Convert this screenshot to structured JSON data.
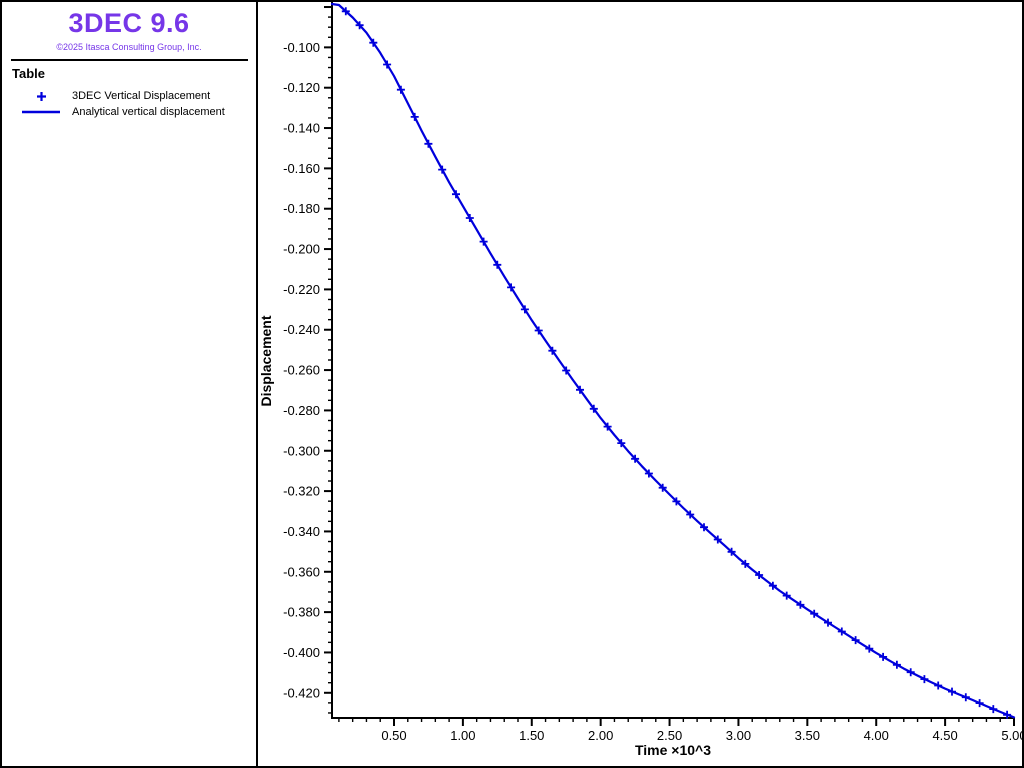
{
  "app": {
    "title": "3DEC 9.6",
    "copyright": "©2025 Itasca Consulting Group, Inc.",
    "brand_color": "#7636e8"
  },
  "legend": {
    "heading": "Table",
    "items": [
      {
        "label": "3DEC Vertical Displacement",
        "marker": "plus",
        "color": "#0000dc"
      },
      {
        "label": "Analytical vertical displacement",
        "marker": "line",
        "color": "#0000dc"
      }
    ]
  },
  "chart_data": {
    "type": "line",
    "title": "",
    "xlabel": "Time ×10^3",
    "ylabel": "Displacement",
    "xlim": [
      0.05,
      5.0
    ],
    "ylim": [
      -0.4325,
      -0.0785
    ],
    "x_major_step": 0.5,
    "x_minor_step": 0.1,
    "y_major_step": 0.02,
    "y_minor_step": 0.005,
    "x_decimals": 2,
    "y_decimals": 3,
    "grid": false,
    "legend_position": "sidebar",
    "axis_color": "#000000",
    "series": [
      {
        "name": "3DEC Vertical Displacement",
        "type": "scatter",
        "marker": "plus",
        "color": "#0000dc",
        "x": [
          0.15,
          0.25,
          0.35,
          0.45,
          0.55,
          0.65,
          0.75,
          0.85,
          0.95,
          1.05,
          1.15,
          1.25,
          1.35,
          1.45,
          1.55,
          1.65,
          1.75,
          1.85,
          1.95,
          2.05,
          2.15,
          2.25,
          2.35,
          2.45,
          2.55,
          2.65,
          2.75,
          2.85,
          2.95,
          3.05,
          3.15,
          3.25,
          3.35,
          3.45,
          3.55,
          3.65,
          3.75,
          3.85,
          3.95,
          4.05,
          4.15,
          4.25,
          4.35,
          4.45,
          4.55,
          4.65,
          4.75,
          4.85,
          4.95
        ],
        "y": [
          -0.0821,
          -0.089,
          -0.0977,
          -0.1085,
          -0.121,
          -0.1345,
          -0.1478,
          -0.1606,
          -0.1728,
          -0.1846,
          -0.1963,
          -0.2078,
          -0.219,
          -0.2299,
          -0.2404,
          -0.2504,
          -0.2602,
          -0.2698,
          -0.2792,
          -0.288,
          -0.2962,
          -0.304,
          -0.3113,
          -0.3183,
          -0.3251,
          -0.3316,
          -0.3379,
          -0.344,
          -0.3501,
          -0.3561,
          -0.3616,
          -0.3669,
          -0.3718,
          -0.3764,
          -0.3808,
          -0.3852,
          -0.3896,
          -0.3939,
          -0.3981,
          -0.4022,
          -0.4061,
          -0.4098,
          -0.4132,
          -0.4164,
          -0.4194,
          -0.4222,
          -0.4251,
          -0.4281,
          -0.4309
        ]
      },
      {
        "name": "Analytical vertical displacement",
        "type": "line",
        "color": "#0000dc",
        "x": [
          0.05,
          0.1,
          0.2,
          0.3,
          0.4,
          0.5,
          0.6,
          0.7,
          0.8,
          0.9,
          1.0,
          1.1,
          1.2,
          1.3,
          1.4,
          1.5,
          1.6,
          1.7,
          1.8,
          1.9,
          2.0,
          2.1,
          2.2,
          2.3,
          2.4,
          2.5,
          2.6,
          2.7,
          2.8,
          2.9,
          3.0,
          3.1,
          3.2,
          3.3,
          3.4,
          3.5,
          3.6,
          3.7,
          3.8,
          3.9,
          4.0,
          4.1,
          4.2,
          4.3,
          4.4,
          4.5,
          4.6,
          4.7,
          4.8,
          4.9,
          5.0
        ],
        "y": [
          -0.0785,
          -0.079,
          -0.0852,
          -0.0927,
          -0.1027,
          -0.1142,
          -0.1277,
          -0.1413,
          -0.1542,
          -0.1669,
          -0.1787,
          -0.1904,
          -0.2021,
          -0.2135,
          -0.2245,
          -0.2353,
          -0.2455,
          -0.2553,
          -0.265,
          -0.2745,
          -0.2838,
          -0.2922,
          -0.3002,
          -0.3077,
          -0.3148,
          -0.3217,
          -0.3284,
          -0.3348,
          -0.341,
          -0.347,
          -0.3532,
          -0.3589,
          -0.3643,
          -0.3695,
          -0.3741,
          -0.3786,
          -0.383,
          -0.3874,
          -0.3917,
          -0.396,
          -0.4002,
          -0.4042,
          -0.408,
          -0.4115,
          -0.4148,
          -0.4179,
          -0.4208,
          -0.4236,
          -0.4266,
          -0.4295,
          -0.4322
        ]
      }
    ]
  }
}
